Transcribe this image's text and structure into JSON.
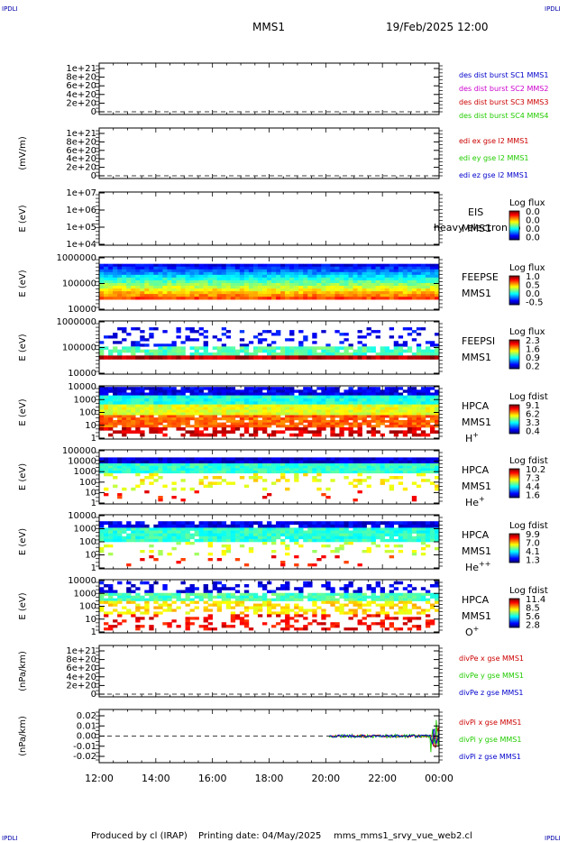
{
  "corner_label": "IPDLI",
  "header": {
    "mission": "MMS1",
    "date": "19/Feb/2025 12:00"
  },
  "footer": {
    "produced_by": "Produced by cl (IRAP)",
    "printing_date": "Printing date: 04/May/2025",
    "script": "mms_mms1_srvy_vue_web2.cl"
  },
  "colors": {
    "red": "#cc0000",
    "magenta": "#cc00cc",
    "green": "#22cc00",
    "blue": "#0000cc",
    "axis": "#000000"
  },
  "chart_data": {
    "x_ticks": [
      "12:00",
      "14:00",
      "16:00",
      "18:00",
      "20:00",
      "22:00",
      "00:00"
    ],
    "panels": [
      {
        "id": "des-dist",
        "type": "line",
        "ylabel": "",
        "yticks": [
          "1e+21",
          "8e+20",
          "6e+20",
          "4e+20",
          "2e+20",
          "0"
        ],
        "legend": [
          {
            "text": "des dist burst SC1 MMS1",
            "color": "#0000cc"
          },
          {
            "text": "des dist burst SC2 MMS2",
            "color": "#cc00cc"
          },
          {
            "text": "des dist burst SC3 MMS3",
            "color": "#cc0000"
          },
          {
            "text": "des dist burst SC4 MMS4",
            "color": "#22cc00"
          }
        ]
      },
      {
        "id": "edi",
        "type": "line",
        "ylabel": "(mV/m)",
        "yticks": [
          "1e+21",
          "8e+20",
          "6e+20",
          "4e+20",
          "2e+20",
          "0"
        ],
        "legend": [
          {
            "text": "edi ex gse l2 MMS1",
            "color": "#cc0000"
          },
          {
            "text": "edi ey gse l2 MMS1",
            "color": "#22cc00"
          },
          {
            "text": "edi ez gse l2 MMS1",
            "color": "#0000cc"
          }
        ]
      },
      {
        "id": "eis",
        "type": "heatmap",
        "ylabel": "E (eV)",
        "yticks": [
          "1e+07",
          "1e+06",
          "1e+05",
          "1e+04"
        ],
        "instrument": [
          "EIS",
          "MMS1"
        ],
        "overlay": "heavy electron to",
        "cbar_title": "Log flux",
        "cbar_ticks": [
          "0.0",
          "0.0",
          "0.0",
          "0.0"
        ]
      },
      {
        "id": "feepse",
        "type": "heatmap",
        "ylabel": "E (eV)",
        "yticks": [
          "1000000",
          "100000",
          "10000"
        ],
        "instrument": [
          "FEEPSE",
          "MMS1"
        ],
        "cbar_title": "Log flux",
        "cbar_ticks": [
          "1.0",
          "0.5",
          "0.0",
          "-0.5"
        ]
      },
      {
        "id": "feepsi",
        "type": "heatmap",
        "ylabel": "E (eV)",
        "yticks": [
          "1000000",
          "100000",
          "10000"
        ],
        "instrument": [
          "FEEPSI",
          "MMS1"
        ],
        "cbar_title": "Log flux",
        "cbar_ticks": [
          "2.3",
          "1.6",
          "0.9",
          "0.2"
        ]
      },
      {
        "id": "hpca-h",
        "type": "heatmap",
        "ylabel": "E (eV)",
        "yticks": [
          "10000",
          "1000",
          "100",
          "10",
          "1"
        ],
        "instrument": [
          "HPCA",
          "MMS1"
        ],
        "species": "H",
        "species_sup": "+",
        "cbar_title": "Log fdist",
        "cbar_ticks": [
          "9.1",
          "6.2",
          "3.3",
          "0.4"
        ]
      },
      {
        "id": "hpca-he",
        "type": "heatmap",
        "ylabel": "E (eV)",
        "yticks": [
          "100000",
          "10000",
          "1000",
          "100",
          "10",
          "1"
        ],
        "instrument": [
          "HPCA",
          "MMS1"
        ],
        "species": "He",
        "species_sup": "+",
        "cbar_title": "Log fdist",
        "cbar_ticks": [
          "10.2",
          "7.3",
          "4.4",
          "1.6"
        ]
      },
      {
        "id": "hpca-hepp",
        "type": "heatmap",
        "ylabel": "E (eV)",
        "yticks": [
          "10000",
          "1000",
          "100",
          "10",
          "1"
        ],
        "instrument": [
          "HPCA",
          "MMS1"
        ],
        "species": "He",
        "species_sup": "++",
        "cbar_title": "Log fdist",
        "cbar_ticks": [
          "9.9",
          "7.0",
          "4.1",
          "1.3"
        ]
      },
      {
        "id": "hpca-o",
        "type": "heatmap",
        "ylabel": "E (eV)",
        "yticks": [
          "10000",
          "1000",
          "100",
          "10",
          "1"
        ],
        "instrument": [
          "HPCA",
          "MMS1"
        ],
        "species": "O",
        "species_sup": "+",
        "cbar_title": "Log fdist",
        "cbar_ticks": [
          "11.4",
          "8.5",
          "5.6",
          "2.8"
        ]
      },
      {
        "id": "divpe",
        "type": "line",
        "ylabel": "(nPa/km)",
        "yticks": [
          "1e+21",
          "8e+20",
          "6e+20",
          "4e+20",
          "2e+20",
          "0"
        ],
        "legend": [
          {
            "text": "divPe x gse MMS1",
            "color": "#cc0000"
          },
          {
            "text": "divPe y gse MMS1",
            "color": "#22cc00"
          },
          {
            "text": "divPe z gse MMS1",
            "color": "#0000cc"
          }
        ]
      },
      {
        "id": "divpi",
        "type": "line",
        "ylabel": "(nPa/km)",
        "yticks": [
          "0.02",
          "0.01",
          "0.00",
          "-0.01",
          "-0.02"
        ],
        "ylim": [
          -0.025,
          0.025
        ],
        "legend": [
          {
            "text": "divPi x gse MMS1",
            "color": "#cc0000"
          },
          {
            "text": "divPi y gse MMS1",
            "color": "#22cc00"
          },
          {
            "text": "divPi z gse MMS1",
            "color": "#0000cc"
          }
        ]
      }
    ]
  }
}
